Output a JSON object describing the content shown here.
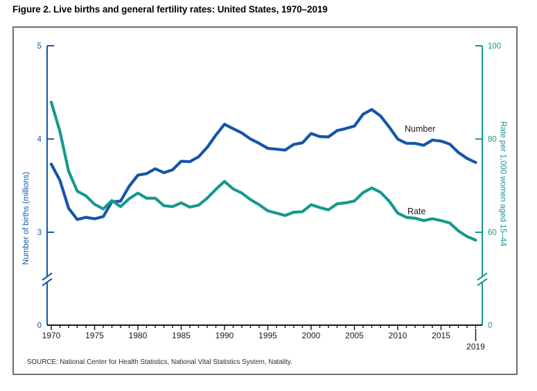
{
  "figure": {
    "title": "Figure 2. Live births and general fertility rates: United States, 1970–2019",
    "source": "SOURCE: National Center for Health Statistics, National Vital Statistics System, Natality."
  },
  "chart_data": {
    "type": "line",
    "title": "Live births and general fertility rates: United States, 1970–2019",
    "years": [
      1970,
      1971,
      1972,
      1973,
      1974,
      1975,
      1976,
      1977,
      1978,
      1979,
      1980,
      1981,
      1982,
      1983,
      1984,
      1985,
      1986,
      1987,
      1988,
      1989,
      1990,
      1991,
      1992,
      1993,
      1994,
      1995,
      1996,
      1997,
      1998,
      1999,
      2000,
      2001,
      2002,
      2003,
      2004,
      2005,
      2006,
      2007,
      2008,
      2009,
      2010,
      2011,
      2012,
      2013,
      2014,
      2015,
      2016,
      2017,
      2018,
      2019
    ],
    "series": [
      {
        "name": "Number",
        "axis": "left",
        "color": "#1455aa",
        "values": [
          3.731,
          3.556,
          3.258,
          3.137,
          3.16,
          3.144,
          3.168,
          3.327,
          3.333,
          3.494,
          3.612,
          3.629,
          3.681,
          3.639,
          3.669,
          3.761,
          3.757,
          3.809,
          3.91,
          4.041,
          4.158,
          4.111,
          4.065,
          4.0,
          3.953,
          3.9,
          3.891,
          3.881,
          3.942,
          3.959,
          4.059,
          4.026,
          4.022,
          4.09,
          4.112,
          4.138,
          4.266,
          4.316,
          4.248,
          4.131,
          3.999,
          3.954,
          3.953,
          3.932,
          3.988,
          3.978,
          3.946,
          3.856,
          3.792,
          3.748
        ]
      },
      {
        "name": "Rate",
        "axis": "right",
        "color": "#16998f",
        "values": [
          87.9,
          81.6,
          73.1,
          68.8,
          67.8,
          66.0,
          65.0,
          66.8,
          65.5,
          67.2,
          68.4,
          67.3,
          67.3,
          65.7,
          65.5,
          66.3,
          65.4,
          65.8,
          67.3,
          69.2,
          70.9,
          69.3,
          68.4,
          67.0,
          65.9,
          64.6,
          64.1,
          63.6,
          64.3,
          64.4,
          65.9,
          65.3,
          64.8,
          66.1,
          66.3,
          66.7,
          68.5,
          69.5,
          68.6,
          66.7,
          64.1,
          63.2,
          63.0,
          62.5,
          62.9,
          62.5,
          62.0,
          60.3,
          59.1,
          58.3
        ]
      }
    ],
    "left_axis": {
      "label": "Number of births (millions)",
      "ticks": [
        5,
        4,
        3,
        0
      ],
      "range_shown": [
        3,
        5
      ],
      "full_range": [
        0,
        5
      ],
      "axis_break": true,
      "color": "#1455aa"
    },
    "right_axis": {
      "label": "Rate per 1,000 women aged 15–44",
      "ticks": [
        100,
        80,
        60,
        0
      ],
      "range_shown": [
        60,
        100
      ],
      "full_range": [
        0,
        100
      ],
      "axis_break": true,
      "color": "#16998f"
    },
    "x_axis": {
      "major_ticks": [
        1970,
        1975,
        1980,
        1985,
        1990,
        1995,
        2000,
        2005,
        2010,
        2015
      ],
      "minor_tick_every_years": 1,
      "end_marker": {
        "year": 2019,
        "label": "2019"
      },
      "color": "#1a1a1a"
    },
    "legend_position": "inline-labels",
    "grid": false
  }
}
